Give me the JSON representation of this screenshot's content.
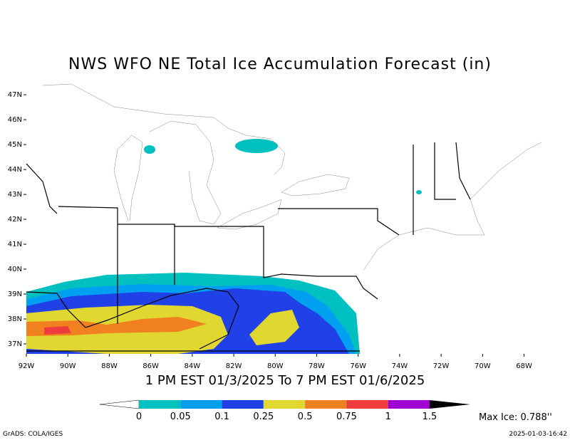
{
  "title": "NWS WFO NE Total Ice Accumulation Forecast (in)",
  "map": {
    "lon_range": [
      -92,
      -67.4
    ],
    "lat_range": [
      36.6,
      47.46
    ],
    "lat_ticks": [
      {
        "value": 47,
        "label": "47N"
      },
      {
        "value": 46,
        "label": "46N"
      },
      {
        "value": 45,
        "label": "45N"
      },
      {
        "value": 44,
        "label": "44N"
      },
      {
        "value": 43,
        "label": "43N"
      },
      {
        "value": 42,
        "label": "42N"
      },
      {
        "value": 41,
        "label": "41N"
      },
      {
        "value": 40,
        "label": "40N"
      },
      {
        "value": 39,
        "label": "39N"
      },
      {
        "value": 38,
        "label": "38N"
      },
      {
        "value": 37,
        "label": "37N"
      }
    ],
    "lon_ticks": [
      {
        "value": -92,
        "label": "92W"
      },
      {
        "value": -90,
        "label": "90W"
      },
      {
        "value": -88,
        "label": "88W"
      },
      {
        "value": -86,
        "label": "86W"
      },
      {
        "value": -84,
        "label": "84W"
      },
      {
        "value": -82,
        "label": "82W"
      },
      {
        "value": -80,
        "label": "80W"
      },
      {
        "value": -78,
        "label": "78W"
      },
      {
        "value": -76,
        "label": "76W"
      },
      {
        "value": -74,
        "label": "74W"
      },
      {
        "value": -72,
        "label": "72W"
      },
      {
        "value": -70,
        "label": "70W"
      },
      {
        "value": -68,
        "label": "68W"
      }
    ]
  },
  "subtitle": "1 PM EST 01/3/2025 To 7 PM EST 01/6/2025",
  "colorbar": {
    "levels": [
      0,
      0.05,
      0.1,
      0.25,
      0.5,
      0.75,
      1,
      1.5
    ],
    "colors": [
      "#00c0c0",
      "#00a0f0",
      "#2040e8",
      "#e0d830",
      "#f08020",
      "#f03c3c",
      "#a000d0"
    ],
    "below_color": "#ffffff",
    "above_color": "#000000"
  },
  "max_ice": "Max Ice: 0.788''",
  "footer": {
    "left": "GrADS: COLA/IGES",
    "right": "2025-01-03-16:42"
  }
}
